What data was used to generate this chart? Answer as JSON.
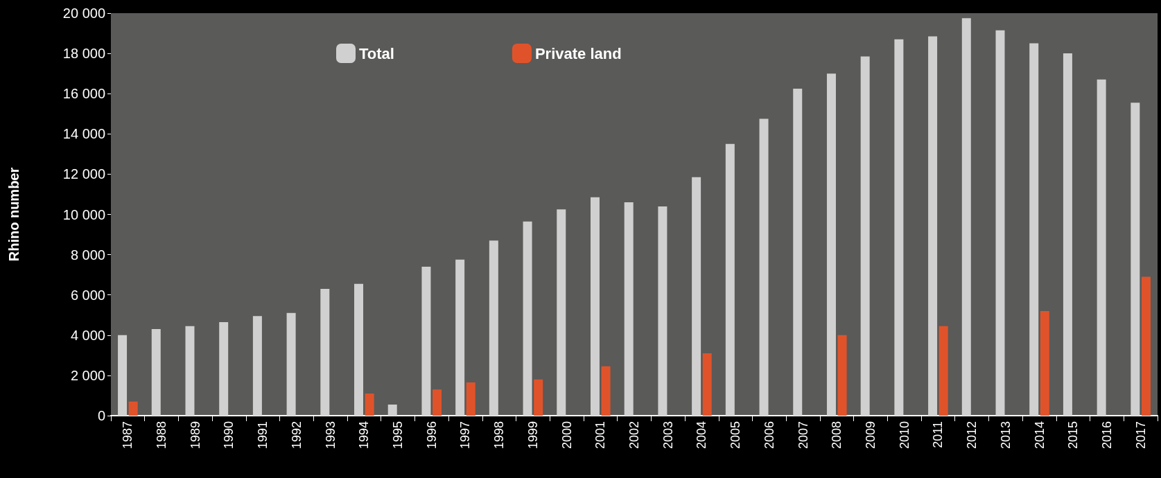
{
  "chart_data": {
    "type": "bar",
    "ylabel": "Rhino number",
    "categories": [
      "1987",
      "1988",
      "1989",
      "1990",
      "1991",
      "1992",
      "1993",
      "1994",
      "1995",
      "1996",
      "1997",
      "1998",
      "1999",
      "2000",
      "2001",
      "2002",
      "2003",
      "2004",
      "2005",
      "2006",
      "2007",
      "2008",
      "2009",
      "2010",
      "2011",
      "2012",
      "2013",
      "2014",
      "2015",
      "2016",
      "2017"
    ],
    "series": [
      {
        "name": "Total",
        "color": "#d0d0d0",
        "values": [
          4000,
          4300,
          4450,
          4650,
          4950,
          5100,
          6300,
          6550,
          550,
          7400,
          7750,
          8700,
          9650,
          10250,
          10850,
          10600,
          10400,
          11850,
          13500,
          14750,
          16250,
          17000,
          17850,
          18700,
          18850,
          19750,
          19150,
          18500,
          18000,
          16700,
          15550
        ]
      },
      {
        "name": "Private land",
        "color": "#e0532a",
        "values": [
          700,
          null,
          null,
          null,
          null,
          null,
          null,
          1100,
          null,
          1300,
          1650,
          null,
          1800,
          null,
          2450,
          null,
          null,
          3100,
          null,
          null,
          null,
          4000,
          null,
          null,
          4450,
          null,
          null,
          5200,
          null,
          null,
          6900
        ]
      }
    ],
    "ylim": [
      0,
      20000
    ],
    "yticks": [
      {
        "value": 0,
        "label": "0"
      },
      {
        "value": 2000,
        "label": "2 000"
      },
      {
        "value": 4000,
        "label": "4 000"
      },
      {
        "value": 6000,
        "label": "6 000"
      },
      {
        "value": 8000,
        "label": "8 000"
      },
      {
        "value": 10000,
        "label": "10 000"
      },
      {
        "value": 12000,
        "label": "12 000"
      },
      {
        "value": 14000,
        "label": "14 000"
      },
      {
        "value": 16000,
        "label": "16 000"
      },
      {
        "value": 18000,
        "label": "18 000"
      },
      {
        "value": 20000,
        "label": "20 000"
      }
    ],
    "grid": false,
    "legend": "top"
  }
}
